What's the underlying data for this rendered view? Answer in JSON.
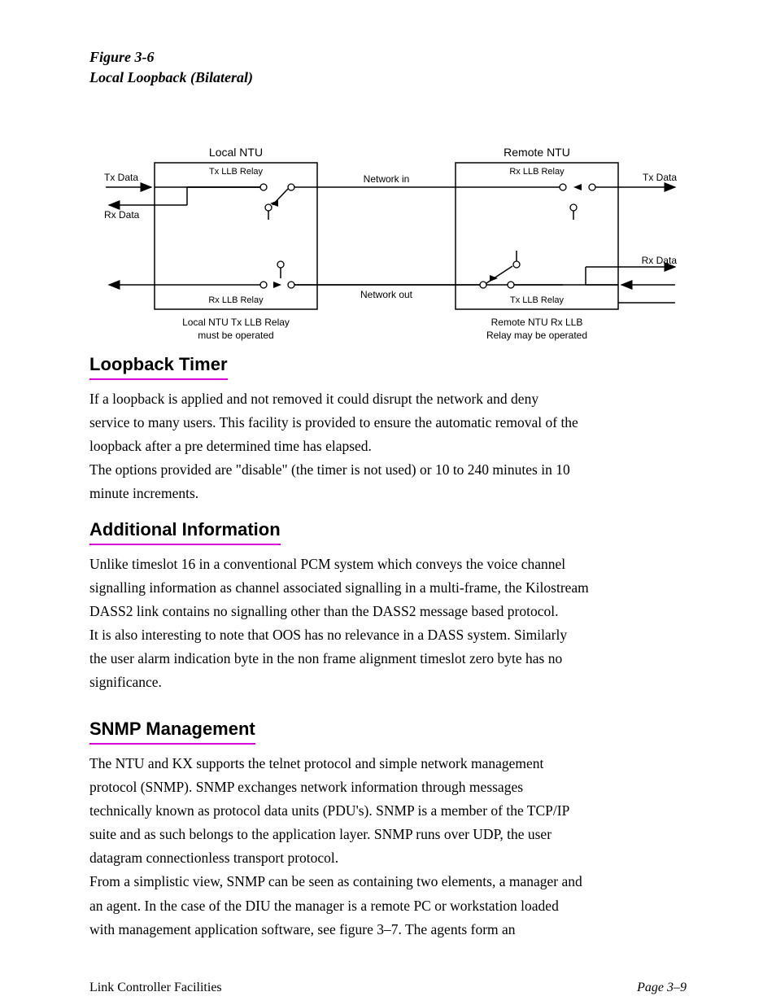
{
  "figure": {
    "label": "Figure 3-6",
    "title": "Local Loopback (Bilateral)",
    "diagram": {
      "box_fill": "#ffffff",
      "box_stroke": "#000000",
      "line_color": "#000000",
      "label_color": "#000000",
      "accent": "#d400d4",
      "labels": {
        "left_box_title": "Local NTU",
        "right_box_title": "Remote NTU",
        "tx_data": "Tx Data",
        "rx_data": "Rx Data",
        "tx_llb": "Tx LLB Relay",
        "rx_llb": "Rx LLB Relay",
        "network_in": "Network in",
        "network_out": "Network out",
        "local_must": "Local NTU Tx LLB Relay\nmust be operated",
        "remote_may": "Remote NTU Rx LLB\nRelay may be operated"
      }
    }
  },
  "sections": {
    "loopback": {
      "heading": "Loopback Timer",
      "p1": "If a loopback is applied and not removed it could disrupt the network and deny",
      "p2": "service to many users. This facility is provided to ensure the automatic removal of the",
      "p3": "loopback after a pre determined time has elapsed.",
      "p4": "The options provided are \"disable\" (the timer is not used) or 10 to 240 minutes in 10",
      "p5": "minute increments."
    },
    "addinfo": {
      "heading": "Additional Information",
      "p1": "Unlike timeslot 16 in a conventional PCM system which conveys the voice channel",
      "p2": "signalling information as channel associated signalling in a multi-frame, the Kilostream",
      "p3": "DASS2 link contains no signalling other than the DASS2 message based protocol.",
      "p4": "It is also interesting to note that OOS has no relevance in a DASS system.  Similarly",
      "p5": "the user alarm indication byte in the non frame alignment timeslot zero byte has no",
      "p6": "significance."
    },
    "snmp": {
      "heading": "SNMP Management",
      "p1": "The NTU and KX supports the telnet protocol and simple network management",
      "p2": "protocol (SNMP).  SNMP exchanges network information through messages",
      "p3": "technically known as protocol data units (PDU's).  SNMP is a member of the TCP/IP",
      "p4": "suite and as such belongs to the application layer.  SNMP runs over UDP,  the user",
      "p5": "datagram connectionless transport protocol.",
      "p6": "From a simplistic view, SNMP can be seen as containing two elements, a manager and",
      "p7": "an agent.  In the case of the DIU the manager is a remote PC or workstation loaded",
      "p8": "with management application software, see figure 3–7.   The agents form an"
    }
  },
  "footer": {
    "left": "Link Controller Facilities",
    "right": "Page 3–9"
  }
}
